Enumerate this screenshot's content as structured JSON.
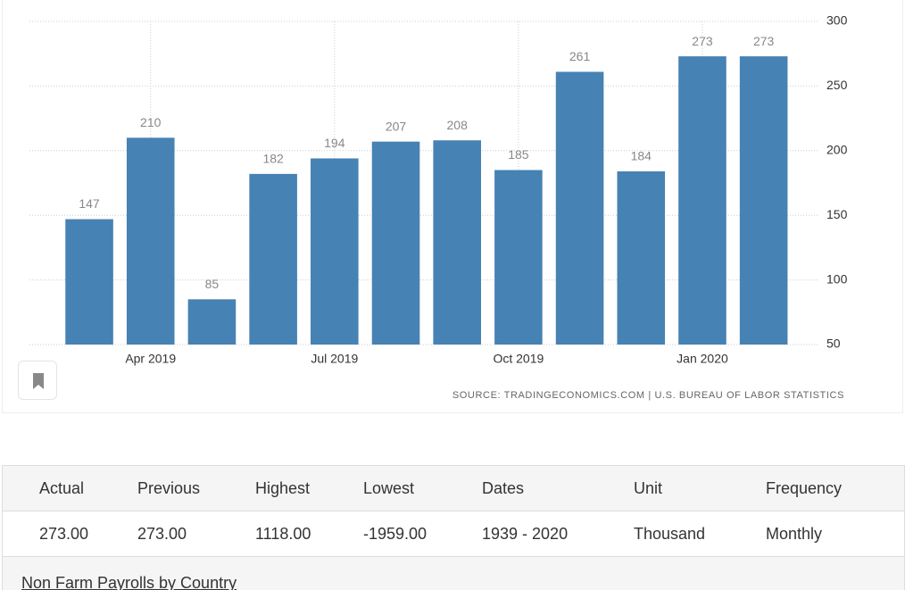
{
  "chart_data": {
    "type": "bar",
    "categories": [
      null,
      "Apr 2019",
      null,
      null,
      "Jul 2019",
      null,
      null,
      "Oct 2019",
      null,
      null,
      "Jan 2020",
      null
    ],
    "values": [
      147,
      210,
      85,
      182,
      194,
      207,
      208,
      185,
      261,
      184,
      273,
      273
    ],
    "color": "#4682b4",
    "ylim": [
      50,
      300
    ],
    "yticks": [
      50,
      100,
      150,
      200,
      250,
      300
    ],
    "grid": true,
    "source": "SOURCE: TRADINGECONOMICS.COM | U.S. BUREAU OF LABOR STATISTICS"
  },
  "table": {
    "header": [
      "Actual",
      "Previous",
      "Highest",
      "Lowest",
      "Dates",
      "Unit",
      "Frequency"
    ],
    "rows": [
      [
        "273.00",
        "273.00",
        "1118.00",
        "-1959.00",
        "1939 - 2020",
        "Thousand",
        "Monthly"
      ]
    ]
  },
  "link": "Non Farm Payrolls by Country"
}
